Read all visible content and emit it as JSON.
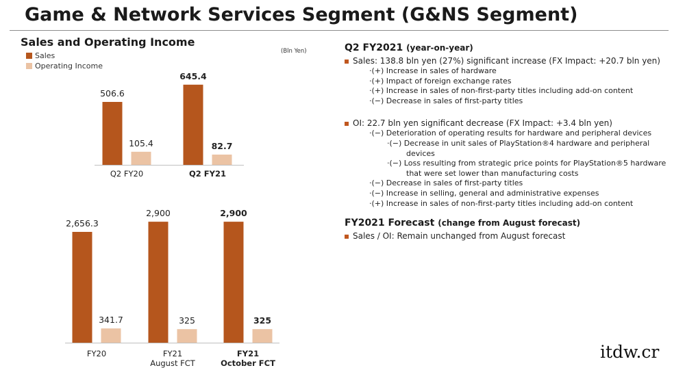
{
  "page": {
    "title": "Game & Network Services Segment (G&NS Segment)",
    "watermark": "itdw.cr"
  },
  "left": {
    "heading": "Sales and Operating Income",
    "unit_note": "(Bln Yen)",
    "legend": {
      "sales": "Sales",
      "oi": "Operating Income"
    }
  },
  "colors": {
    "sales": "#b5561d",
    "operating_income": "#ebc3a4",
    "accent": "#c0571f"
  },
  "chart_data": [
    {
      "type": "bar",
      "categories": [
        "Q2 FY20",
        "Q2 FY21"
      ],
      "series": [
        {
          "name": "Sales",
          "values": [
            506.6,
            645.4
          ],
          "labels": [
            "506.6",
            "645.4"
          ]
        },
        {
          "name": "Operating Income",
          "values": [
            105.4,
            82.7
          ],
          "labels": [
            "105.4",
            "82.7"
          ]
        }
      ],
      "emphasized_category": 1,
      "ylabel": "",
      "ylim": [
        0,
        700
      ],
      "grid": false,
      "legend": "top-left"
    },
    {
      "type": "bar",
      "categories": [
        [
          "FY20"
        ],
        [
          "FY21",
          "August FCT"
        ],
        [
          "FY21",
          "October FCT"
        ]
      ],
      "series": [
        {
          "name": "Sales",
          "values": [
            2656.3,
            2900,
            2900
          ],
          "labels": [
            "2,656.3",
            "2,900",
            "2,900"
          ]
        },
        {
          "name": "Operating Income",
          "values": [
            341.7,
            325,
            325
          ],
          "labels": [
            "341.7",
            "325",
            "325"
          ]
        }
      ],
      "emphasized_category": 2,
      "ylabel": "",
      "ylim": [
        0,
        3000
      ],
      "grid": false
    }
  ],
  "right": {
    "q2": {
      "heading": "Q2 FY2021",
      "note": "(year-on-year)",
      "sales_bullet": "Sales: 138.8 bln yen (27%) significant increase (FX Impact: +20.7 bln yen)",
      "sales_items": [
        "·(+) Increase in sales of hardware",
        "·(+) Impact of foreign exchange rates",
        "·(+) Increase in sales of non-first-party titles including add-on content",
        "·(−) Decrease in sales of first-party titles"
      ],
      "oi_bullet": "OI: 22.7 bln yen significant decrease (FX Impact: +3.4 bln yen)",
      "oi_items": [
        "·(−) Deterioration of operating results for hardware and peripheral devices",
        "·(−) Decrease in unit sales of PlayStation®4 hardware and peripheral",
        "devices",
        "·(−) Loss resulting from strategic price points for PlayStation®5  hardware",
        "that were set lower than manufacturing costs",
        "·(−) Decrease in sales of first-party titles",
        "·(−) Increase in selling, general and administrative expenses",
        "·(+) Increase in sales of non-first-party titles including add-on content"
      ]
    },
    "forecast": {
      "heading": "FY2021 Forecast",
      "note": "(change from August forecast)",
      "bullet": "Sales / OI: Remain unchanged from August forecast"
    }
  }
}
